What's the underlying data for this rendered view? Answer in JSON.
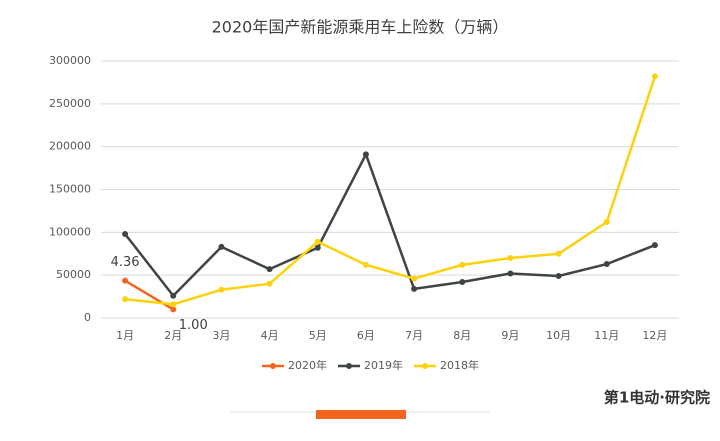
{
  "chart_data": {
    "type": "line",
    "title": "2020年国产新能源乘用车上险数（万辆）",
    "categories": [
      "1月",
      "2月",
      "3月",
      "4月",
      "5月",
      "6月",
      "7月",
      "8月",
      "9月",
      "10月",
      "11月",
      "12月"
    ],
    "series": [
      {
        "name": "2020年",
        "color": "#f4641e",
        "values": [
          43600,
          10000,
          null,
          null,
          null,
          null,
          null,
          null,
          null,
          null,
          null,
          null
        ],
        "value_labels": [
          "4.36",
          "1.00",
          null,
          null,
          null,
          null,
          null,
          null,
          null,
          null,
          null,
          null
        ]
      },
      {
        "name": "2019年",
        "color": "#3f4447",
        "values": [
          98000,
          26000,
          83000,
          57000,
          82000,
          191000,
          34000,
          42000,
          52000,
          49000,
          63000,
          85000
        ]
      },
      {
        "name": "2018年",
        "color": "#fcd20c",
        "values": [
          22000,
          16000,
          33000,
          40000,
          89000,
          62000,
          46000,
          62000,
          70000,
          75000,
          112000,
          282000
        ]
      }
    ],
    "ylim": [
      0,
      300000
    ],
    "yticks": [
      0,
      50000,
      100000,
      150000,
      200000,
      250000,
      300000
    ],
    "grid": true,
    "legend": "bottom",
    "branding": "第1电动·研究院"
  }
}
